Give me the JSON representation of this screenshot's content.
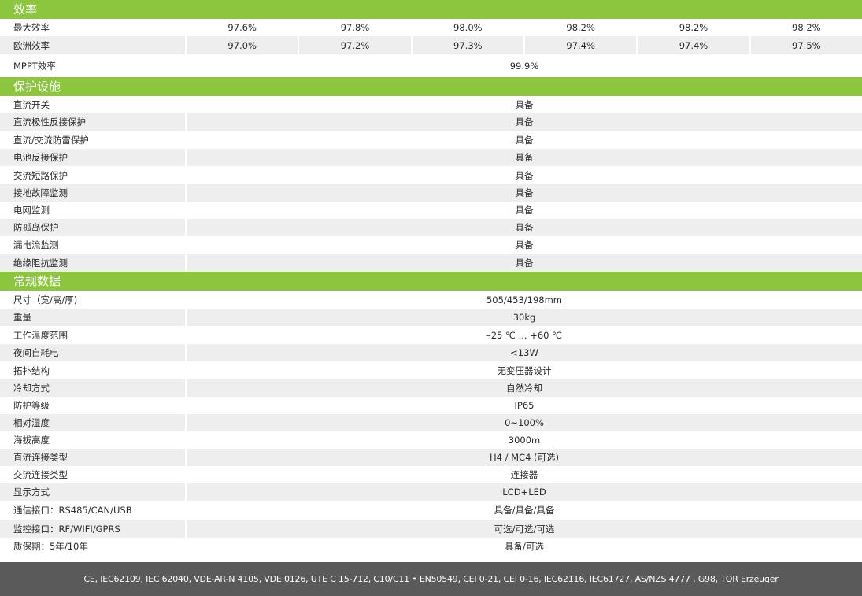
{
  "efficiency": {
    "title": "效率",
    "rows": [
      {
        "label": "最大效率",
        "values": [
          "97.6%",
          "97.8%",
          "98.0%",
          "98.2%",
          "98.2%",
          "98.2%"
        ]
      },
      {
        "label": "欧洲效率",
        "values": [
          "97.0%",
          "97.2%",
          "97.3%",
          "97.4%",
          "97.4%",
          "97.5%"
        ]
      },
      {
        "label": "MPPT效率",
        "values": [
          "99.9%"
        ]
      }
    ]
  },
  "protection": {
    "title": "保护设施",
    "rows": [
      {
        "label": "直流开关",
        "value": "具备"
      },
      {
        "label": "直流极性反接保护",
        "value": "具备"
      },
      {
        "label": "直流/交流防雷保护",
        "value": "具备"
      },
      {
        "label": "电池反接保护",
        "value": "具备"
      },
      {
        "label": "交流短路保护",
        "value": "具备"
      },
      {
        "label": "接地故障监测",
        "value": "具备"
      },
      {
        "label": "电网监测",
        "value": "具备"
      },
      {
        "label": "防孤岛保护",
        "value": "具备"
      },
      {
        "label": "漏电流监测",
        "value": "具备"
      },
      {
        "label": "绝缘阻抗监测",
        "value": "具备"
      }
    ]
  },
  "general": {
    "title": "常规数据",
    "rows": [
      {
        "label": "尺寸（宽/高/厚)",
        "value": "505/453/198mm"
      },
      {
        "label": "重量",
        "value": "30kg"
      },
      {
        "label": "工作温度范围",
        "value": "–25 ℃ ... +60 ℃"
      },
      {
        "label": "夜间自耗电",
        "value": "<13W"
      },
      {
        "label": "拓扑结构",
        "value": "无变压器设计"
      },
      {
        "label": "冷却方式",
        "value": "自然冷却"
      },
      {
        "label": "防护等级",
        "value": "IP65"
      },
      {
        "label": "相对湿度",
        "value": "0~100%"
      },
      {
        "label": "海拔高度",
        "value": "3000m"
      },
      {
        "label": "直流连接类型",
        "value": "H4 / MC4 (可选)"
      },
      {
        "label": "交流连接类型",
        "value": "连接器"
      },
      {
        "label": "显示方式",
        "value": "LCD+LED"
      },
      {
        "label": "通信接口：RS485/CAN/USB",
        "value": "具备/具备/具备"
      },
      {
        "label": "监控接口：RF/WIFI/GPRS",
        "value": "可选/可选/可选"
      },
      {
        "label": "质保期：5年/10年",
        "value": "具备/可选"
      }
    ]
  },
  "footer": {
    "text": "CE, IEC62109, IEC 62040, VDE-AR-N 4105, VDE 0126, UTE C 15-712, C10/C11 • EN50549, CEI 0-21, CEI 0-16, IEC62116, IEC61727, AS/NZS 4777 , G98, TOR Erzeuger"
  }
}
